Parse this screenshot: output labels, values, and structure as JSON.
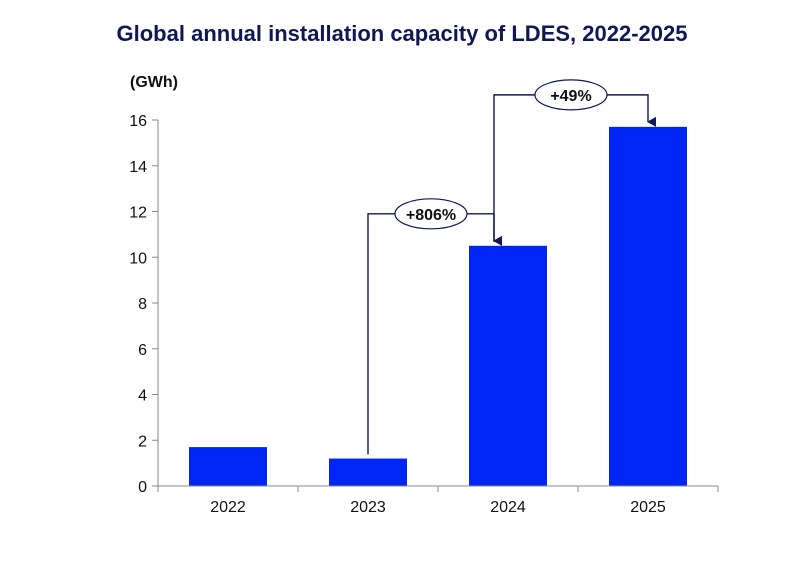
{
  "chart_data": {
    "type": "bar",
    "title": "Global annual installation capacity of LDES, 2022-2025",
    "unit_label": "(GWh)",
    "categories": [
      "2022",
      "2023",
      "2024",
      "2025"
    ],
    "values": [
      1.7,
      1.2,
      10.5,
      15.7
    ],
    "ylim": [
      0,
      16
    ],
    "yticks": [
      0,
      2,
      4,
      6,
      8,
      10,
      12,
      14,
      16
    ],
    "grid": false,
    "legend": "none",
    "bar_color": "#0026f5",
    "annotations": [
      {
        "from": "2023",
        "to": "2024",
        "label": "+806%"
      },
      {
        "from": "2024",
        "to": "2025",
        "label": "+49%"
      }
    ]
  }
}
